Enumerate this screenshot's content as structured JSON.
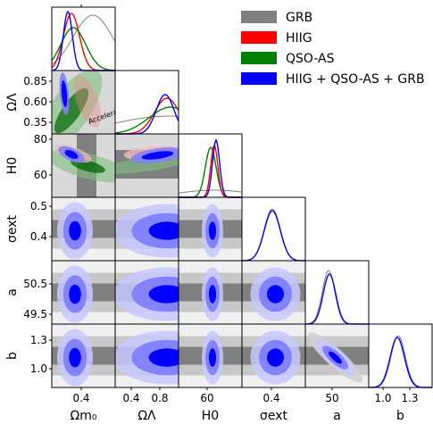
{
  "chart_data": {
    "type": "corner",
    "parameters": [
      {
        "id": "Om",
        "label": "Ωm₀",
        "ticks": [
          "0.4"
        ],
        "range": [
          0.1,
          0.8
        ]
      },
      {
        "id": "OL",
        "label": "ΩΛ",
        "ticks": [
          "0.4",
          "0.8"
        ],
        "ticks_y": [
          "0.85",
          "0.60",
          "0.35"
        ],
        "range": [
          0.1,
          1.1
        ]
      },
      {
        "id": "H0",
        "label": "H0",
        "ticks": [
          "60"
        ],
        "ticks_y": [
          "80",
          "60"
        ],
        "range": [
          50,
          88
        ]
      },
      {
        "id": "sig",
        "label": "σext",
        "ticks": [
          "0.4"
        ],
        "ticks_y": [
          "0.5",
          "0.4"
        ],
        "range": [
          0.3,
          0.56
        ]
      },
      {
        "id": "a",
        "label": "a",
        "ticks": [
          "50"
        ],
        "ticks_y": [
          "50.5",
          "49.5"
        ],
        "range": [
          49.2,
          51.2
        ]
      },
      {
        "id": "b",
        "label": "b",
        "ticks": [
          "1.0",
          "1.3"
        ],
        "ticks_y": [
          "1.3",
          "1.0"
        ],
        "range": [
          0.85,
          1.45
        ]
      }
    ],
    "series": [
      {
        "name": "GRB",
        "color": "#808080"
      },
      {
        "name": "HIIG",
        "color": "#ff0000"
      },
      {
        "name": "QSO-AS",
        "color": "#008000"
      },
      {
        "name": "HIIG + QSO-AS + GRB",
        "color": "#0000ff"
      }
    ],
    "annotation": "Acceleration"
  }
}
